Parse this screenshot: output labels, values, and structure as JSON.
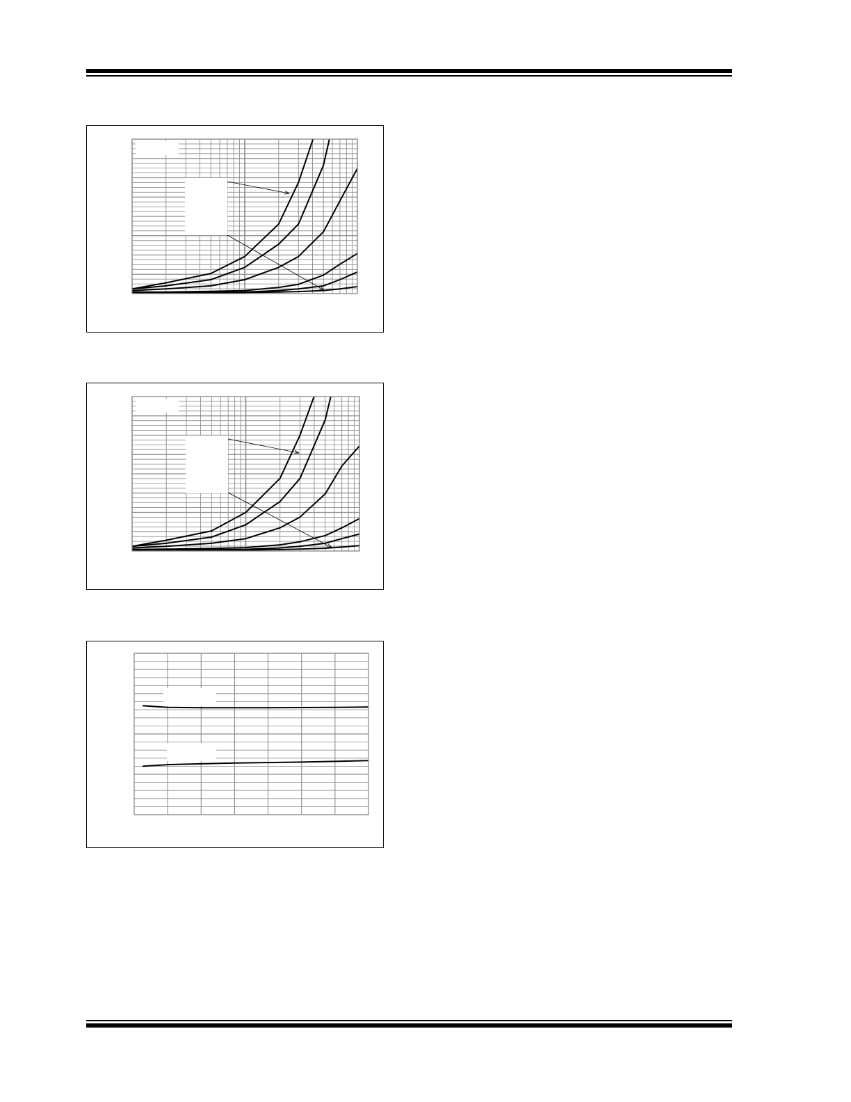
{
  "colors": {
    "curve": "#000000",
    "grid": "#8c8c8c",
    "frame": "#000000"
  },
  "chart_data": [
    {
      "type": "line",
      "x_scale": "log",
      "xlim": [
        1,
        100
      ],
      "ylim": [
        0,
        1
      ],
      "grid": true,
      "x": [
        1,
        2,
        5,
        10,
        20,
        30,
        50,
        70,
        100
      ],
      "series": [
        {
          "values": [
            0.03,
            0.07,
            0.13,
            0.24,
            0.45,
            0.72,
            1.2,
            null,
            null
          ]
        },
        {
          "values": [
            0.03,
            0.05,
            0.09,
            0.17,
            0.32,
            0.45,
            0.83,
            1.3,
            null
          ]
        },
        {
          "values": [
            0.02,
            0.03,
            0.05,
            0.09,
            0.17,
            0.24,
            0.4,
            0.6,
            0.81
          ]
        },
        {
          "values": [
            0.01,
            0.01,
            0.015,
            0.02,
            0.04,
            0.06,
            0.12,
            0.19,
            0.26
          ]
        },
        {
          "values": [
            0.005,
            0.005,
            0.01,
            0.01,
            0.02,
            0.03,
            0.05,
            0.09,
            0.14
          ]
        },
        {
          "values": [
            0.003,
            0.004,
            0.005,
            0.007,
            0.01,
            0.013,
            0.02,
            0.03,
            0.045
          ]
        }
      ]
    },
    {
      "type": "line",
      "x_scale": "log",
      "xlim": [
        1,
        100
      ],
      "ylim": [
        0,
        1
      ],
      "grid": true,
      "x": [
        1,
        2,
        5,
        10,
        20,
        30,
        50,
        70,
        100
      ],
      "series": [
        {
          "values": [
            0.03,
            0.07,
            0.13,
            0.25,
            0.47,
            0.75,
            1.2,
            null,
            null
          ]
        },
        {
          "values": [
            0.03,
            0.05,
            0.09,
            0.17,
            0.32,
            0.47,
            0.85,
            1.3,
            null
          ]
        },
        {
          "values": [
            0.02,
            0.03,
            0.05,
            0.08,
            0.15,
            0.22,
            0.37,
            0.55,
            0.68
          ]
        },
        {
          "values": [
            0.01,
            0.012,
            0.016,
            0.022,
            0.04,
            0.06,
            0.1,
            0.15,
            0.21
          ]
        },
        {
          "values": [
            0.005,
            0.006,
            0.008,
            0.011,
            0.02,
            0.03,
            0.05,
            0.08,
            0.11
          ]
        },
        {
          "values": [
            0.003,
            0.004,
            0.005,
            0.006,
            0.009,
            0.012,
            0.018,
            0.025,
            0.035
          ]
        }
      ]
    },
    {
      "type": "line",
      "x_scale": "linear",
      "xlim": [
        0,
        7
      ],
      "ylim": [
        0,
        1
      ],
      "grid": true,
      "x": [
        0.25,
        1,
        2,
        3,
        4,
        5,
        6,
        7
      ],
      "series": [
        {
          "values": [
            0.675,
            0.665,
            0.663,
            0.663,
            0.663,
            0.664,
            0.665,
            0.667
          ]
        },
        {
          "values": [
            0.3,
            0.31,
            0.315,
            0.32,
            0.323,
            0.326,
            0.33,
            0.335
          ]
        }
      ]
    }
  ]
}
